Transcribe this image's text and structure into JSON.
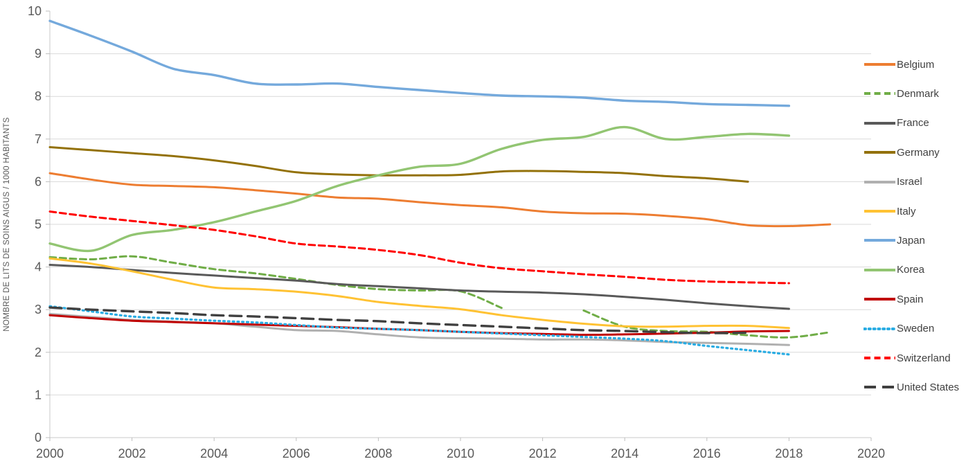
{
  "axes": {
    "y_title": "NOMBRE DE LITS DE SOINS AIGUS / 1000 HABITANTS",
    "x_tick_labels": [
      "2000",
      "2002",
      "2004",
      "2006",
      "2008",
      "2010",
      "2012",
      "2014",
      "2016",
      "2018",
      "2020"
    ],
    "y_tick_labels": [
      "0",
      "1",
      "2",
      "3",
      "4",
      "5",
      "6",
      "7",
      "8",
      "9",
      "10"
    ]
  },
  "style": {
    "gridline_color": "#d9d9d9",
    "axis_line_color": "#c9c9c9",
    "tick_color": "#bfbfbf",
    "tick_label_color": "#595959",
    "legend_text_color": "#404040",
    "background": "#ffffff"
  },
  "chart_data": {
    "type": "line",
    "title": "",
    "xlabel": "",
    "ylabel": "NOMBRE DE LITS DE SOINS AIGUS / 1000 HABITANTS",
    "xlim": [
      2000,
      2020
    ],
    "ylim": [
      0,
      10
    ],
    "x_tick_step": 2,
    "y_tick_step": 1,
    "grid": "horizontal",
    "legend_position": "right",
    "smooth_lines": true,
    "x": [
      2000,
      2001,
      2002,
      2003,
      2004,
      2005,
      2006,
      2007,
      2008,
      2009,
      2010,
      2011,
      2012,
      2013,
      2014,
      2015,
      2016,
      2017,
      2018,
      2019
    ],
    "series": [
      {
        "name": "Belgium",
        "color": "#ED7D31",
        "style": "solid",
        "width": 3,
        "values": [
          6.2,
          6.05,
          5.93,
          5.9,
          5.87,
          5.8,
          5.72,
          5.63,
          5.6,
          5.52,
          5.45,
          5.4,
          5.3,
          5.26,
          5.25,
          5.2,
          5.12,
          4.98,
          4.96,
          5.0
        ]
      },
      {
        "name": "Denmark",
        "color": "#70AD47",
        "style": "dash",
        "width": 3,
        "values": [
          4.23,
          4.18,
          4.25,
          4.1,
          3.95,
          3.85,
          3.72,
          3.58,
          3.48,
          3.45,
          3.43,
          3.04,
          null,
          2.98,
          2.6,
          2.5,
          2.48,
          2.4,
          2.35,
          2.47
        ]
      },
      {
        "name": "France",
        "color": "#595959",
        "style": "solid",
        "width": 3,
        "values": [
          4.05,
          4.0,
          3.93,
          3.86,
          3.8,
          3.74,
          3.68,
          3.6,
          3.55,
          3.5,
          3.45,
          3.42,
          3.4,
          3.36,
          3.3,
          3.23,
          3.15,
          3.08,
          3.02,
          null
        ]
      },
      {
        "name": "Germany",
        "color": "#937109",
        "style": "solid",
        "width": 3,
        "values": [
          6.81,
          6.74,
          6.67,
          6.6,
          6.5,
          6.37,
          6.22,
          6.17,
          6.15,
          6.15,
          6.16,
          6.24,
          6.25,
          6.23,
          6.2,
          6.13,
          6.08,
          6.0,
          null,
          null
        ]
      },
      {
        "name": "Israel",
        "color": "#B0B0B0",
        "style": "solid",
        "width": 3,
        "values": [
          2.9,
          2.83,
          2.76,
          2.72,
          2.68,
          2.6,
          2.52,
          2.5,
          2.42,
          2.35,
          2.33,
          2.32,
          2.3,
          2.3,
          2.28,
          2.24,
          2.22,
          2.2,
          2.17,
          null
        ]
      },
      {
        "name": "Italy",
        "color": "#FFC233",
        "style": "solid",
        "width": 3,
        "values": [
          4.2,
          4.08,
          3.9,
          3.7,
          3.52,
          3.48,
          3.42,
          3.32,
          3.18,
          3.09,
          3.01,
          2.87,
          2.76,
          2.67,
          2.61,
          2.6,
          2.62,
          2.62,
          2.57,
          null
        ]
      },
      {
        "name": "Japan",
        "color": "#74A9DC",
        "style": "solid",
        "width": 3.4,
        "values": [
          9.77,
          9.42,
          9.05,
          8.65,
          8.5,
          8.3,
          8.28,
          8.3,
          8.22,
          8.15,
          8.08,
          8.02,
          8.0,
          7.97,
          7.9,
          7.87,
          7.82,
          7.8,
          7.78,
          null
        ]
      },
      {
        "name": "Korea",
        "color": "#92C572",
        "style": "solid",
        "width": 3.4,
        "values": [
          4.55,
          4.38,
          4.75,
          4.87,
          5.05,
          5.3,
          5.55,
          5.9,
          6.15,
          6.35,
          6.42,
          6.77,
          6.98,
          7.05,
          7.28,
          7.0,
          7.05,
          7.12,
          7.08,
          null
        ]
      },
      {
        "name": "Spain",
        "color": "#C00000",
        "style": "solid",
        "width": 3,
        "values": [
          2.87,
          2.8,
          2.74,
          2.71,
          2.68,
          2.65,
          2.62,
          2.59,
          2.55,
          2.52,
          2.48,
          2.45,
          2.43,
          2.41,
          2.42,
          2.44,
          2.46,
          2.49,
          2.5,
          null
        ]
      },
      {
        "name": "Sweden",
        "color": "#29ACE3",
        "style": "dot",
        "width": 3.2,
        "values": [
          3.08,
          2.96,
          2.84,
          2.79,
          2.74,
          2.7,
          2.64,
          2.58,
          2.55,
          2.52,
          2.48,
          2.44,
          2.4,
          2.36,
          2.32,
          2.26,
          2.15,
          2.05,
          1.95,
          null
        ]
      },
      {
        "name": "Switzerland",
        "color": "#FF0000",
        "style": "dash",
        "width": 3,
        "values": [
          5.3,
          5.18,
          5.08,
          4.98,
          4.87,
          4.72,
          4.55,
          4.48,
          4.4,
          4.28,
          4.1,
          3.97,
          3.9,
          3.83,
          3.77,
          3.7,
          3.66,
          3.64,
          3.62,
          null
        ]
      },
      {
        "name": "United States",
        "color": "#404040",
        "style": "longdash",
        "width": 3.4,
        "values": [
          3.05,
          3.0,
          2.96,
          2.92,
          2.87,
          2.84,
          2.8,
          2.76,
          2.73,
          2.68,
          2.64,
          2.6,
          2.56,
          2.52,
          2.5,
          2.47,
          2.45,
          2.46,
          null,
          null
        ]
      }
    ]
  }
}
